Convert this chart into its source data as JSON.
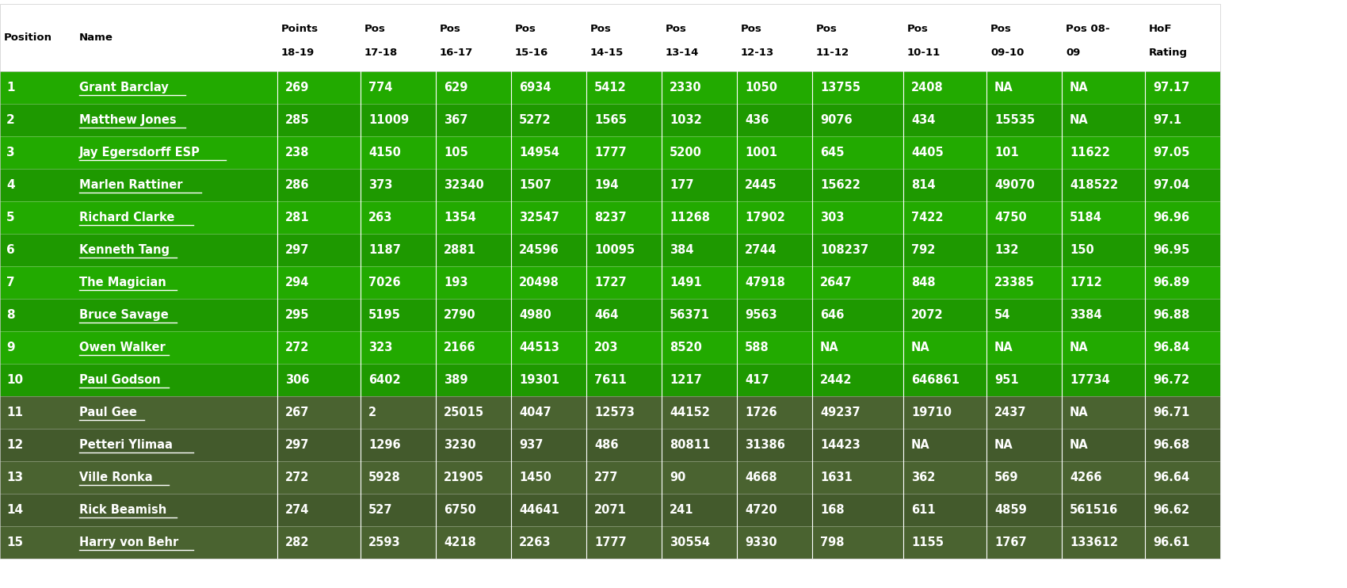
{
  "headers": [
    "Position",
    "Name",
    "Points\n18-19",
    "Pos\n17-18",
    "Pos\n16-17",
    "Pos\n15-16",
    "Pos\n14-15",
    "Pos\n13-14",
    "Pos\n12-13",
    "Pos\n11-12",
    "Pos\n10-11",
    "Pos\n09-10",
    "Pos 08-\n09",
    "HoF\nRating"
  ],
  "rows": [
    [
      "1",
      "Grant Barclay",
      "269",
      "774",
      "629",
      "6934",
      "5412",
      "2330",
      "1050",
      "13755",
      "2408",
      "NA",
      "NA",
      "97.17"
    ],
    [
      "2",
      "Matthew Jones",
      "285",
      "11009",
      "367",
      "5272",
      "1565",
      "1032",
      "436",
      "9076",
      "434",
      "15535",
      "NA",
      "97.1"
    ],
    [
      "3",
      "Jay Egersdorff ESP",
      "238",
      "4150",
      "105",
      "14954",
      "1777",
      "5200",
      "1001",
      "645",
      "4405",
      "101",
      "11622",
      "97.05"
    ],
    [
      "4",
      "Marlen Rattiner",
      "286",
      "373",
      "32340",
      "1507",
      "194",
      "177",
      "2445",
      "15622",
      "814",
      "49070",
      "418522",
      "97.04"
    ],
    [
      "5",
      "Richard Clarke",
      "281",
      "263",
      "1354",
      "32547",
      "8237",
      "11268",
      "17902",
      "303",
      "7422",
      "4750",
      "5184",
      "96.96"
    ],
    [
      "6",
      "Kenneth Tang",
      "297",
      "1187",
      "2881",
      "24596",
      "10095",
      "384",
      "2744",
      "108237",
      "792",
      "132",
      "150",
      "96.95"
    ],
    [
      "7",
      "The Magician",
      "294",
      "7026",
      "193",
      "20498",
      "1727",
      "1491",
      "47918",
      "2647",
      "848",
      "23385",
      "1712",
      "96.89"
    ],
    [
      "8",
      "Bruce Savage",
      "295",
      "5195",
      "2790",
      "4980",
      "464",
      "56371",
      "9563",
      "646",
      "2072",
      "54",
      "3384",
      "96.88"
    ],
    [
      "9",
      "Owen Walker",
      "272",
      "323",
      "2166",
      "44513",
      "203",
      "8520",
      "588",
      "NA",
      "NA",
      "NA",
      "NA",
      "96.84"
    ],
    [
      "10",
      "Paul Godson",
      "306",
      "6402",
      "389",
      "19301",
      "7611",
      "1217",
      "417",
      "2442",
      "646861",
      "951",
      "17734",
      "96.72"
    ],
    [
      "11",
      "Paul Gee",
      "267",
      "2",
      "25015",
      "4047",
      "12573",
      "44152",
      "1726",
      "49237",
      "19710",
      "2437",
      "NA",
      "96.71"
    ],
    [
      "12",
      "Petteri Ylimaa",
      "297",
      "1296",
      "3230",
      "937",
      "486",
      "80811",
      "31386",
      "14423",
      "NA",
      "NA",
      "NA",
      "96.68"
    ],
    [
      "13",
      "Ville Ronka",
      "272",
      "5928",
      "21905",
      "1450",
      "277",
      "90",
      "4668",
      "1631",
      "362",
      "569",
      "4266",
      "96.64"
    ],
    [
      "14",
      "Rick Beamish",
      "274",
      "527",
      "6750",
      "44641",
      "2071",
      "241",
      "4720",
      "168",
      "611",
      "4859",
      "561516",
      "96.62"
    ],
    [
      "15",
      "Harry von Behr",
      "282",
      "2593",
      "4218",
      "2263",
      "1777",
      "30554",
      "9330",
      "798",
      "1155",
      "1767",
      "133612",
      "96.61"
    ]
  ],
  "green_bg": "#22AA00",
  "dark_green_bg": "#4A6330",
  "header_bg": "#FFFFFF",
  "text_white": "#FFFFFF",
  "text_dark": "#000000",
  "name_underline_color": "#FFFFFF",
  "divider_color": "#FFFFFF",
  "row_divider_color": "#1A8800",
  "top10_bg": "#22AA00",
  "bottom5_bg": "#4A6330"
}
